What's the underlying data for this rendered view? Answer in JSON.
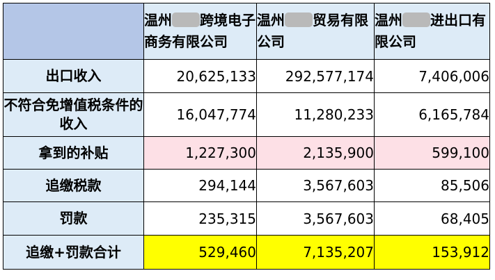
{
  "columns": [
    {
      "prefix": "温州",
      "suffix": "跨境电子商务有限公司"
    },
    {
      "prefix": "温州",
      "suffix": "贸易有限公司"
    },
    {
      "prefix": "温州",
      "suffix": "进出口有限公司"
    }
  ],
  "rows": [
    {
      "label": "出口收入",
      "values": [
        "20,625,133",
        "292,577,174",
        "7,406,006"
      ]
    },
    {
      "label": "不符合免增值税条件的收入",
      "values": [
        "16,047,774",
        "11,280,233",
        "6,165,784"
      ]
    },
    {
      "label": "拿到的补贴",
      "values": [
        "1,227,300",
        "2,135,900",
        "599,100"
      ]
    },
    {
      "label": "追缴税款",
      "values": [
        "294,144",
        "3,567,603",
        "85,506"
      ]
    },
    {
      "label": "罚款",
      "values": [
        "235,315",
        "3,567,603",
        "68,405"
      ]
    },
    {
      "label": "追缴+罚款合计",
      "values": [
        "529,460",
        "7,135,207",
        "153,912"
      ]
    }
  ],
  "colors": {
    "header_corner": "#b4c6e7",
    "header_bg": "#ddebf7",
    "subsidy_highlight": "#fde0e6",
    "total_highlight": "#ffff00"
  },
  "redaction_note_icon": "blurred-name-redaction"
}
